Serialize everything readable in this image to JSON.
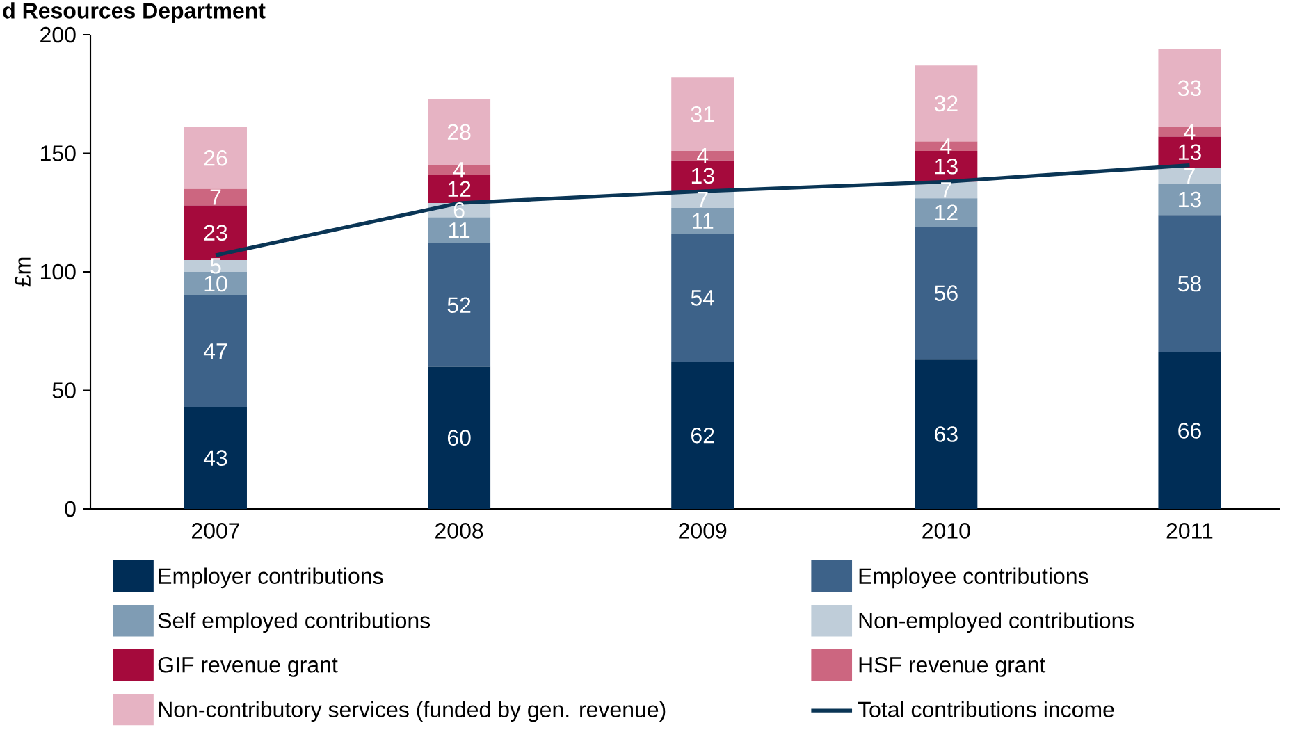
{
  "chart_data": {
    "type": "bar",
    "title": "d Resources Department",
    "ylabel": "£m",
    "stacked": true,
    "data_labels": true,
    "legend": "bottom",
    "grid": false,
    "categories": [
      "2007",
      "2008",
      "2009",
      "2010",
      "2011"
    ],
    "ylim": [
      0,
      200
    ],
    "yticks": [
      0,
      50,
      100,
      150,
      200
    ],
    "series": [
      {
        "name": "Employer contributions",
        "color": "#002d56",
        "values": [
          43,
          60,
          62,
          63,
          66
        ]
      },
      {
        "name": "Employee contributions",
        "color": "#3d6289",
        "values": [
          47,
          52,
          54,
          56,
          58
        ]
      },
      {
        "name": "Self employed contributions",
        "color": "#7f9cb4",
        "values": [
          10,
          11,
          11,
          12,
          13
        ]
      },
      {
        "name": "Non-employed contributions",
        "color": "#bfcdd9",
        "values": [
          5,
          6,
          7,
          7,
          7
        ]
      },
      {
        "name": "GIF revenue grant",
        "color": "#a50a3c",
        "values": [
          23,
          12,
          13,
          13,
          13
        ]
      },
      {
        "name": "HSF revenue grant",
        "color": "#cc6680",
        "values": [
          7,
          4,
          4,
          4,
          4
        ]
      },
      {
        "name": "Non-contributory services (funded by gen. revenue)",
        "color": "#e6b3c3",
        "values": [
          26,
          28,
          31,
          32,
          33
        ]
      },
      {
        "name": "Total contributions income",
        "type": "line",
        "data_labels": false,
        "color": "#0a3555",
        "values": [
          107,
          129,
          134,
          138,
          145
        ]
      }
    ]
  }
}
